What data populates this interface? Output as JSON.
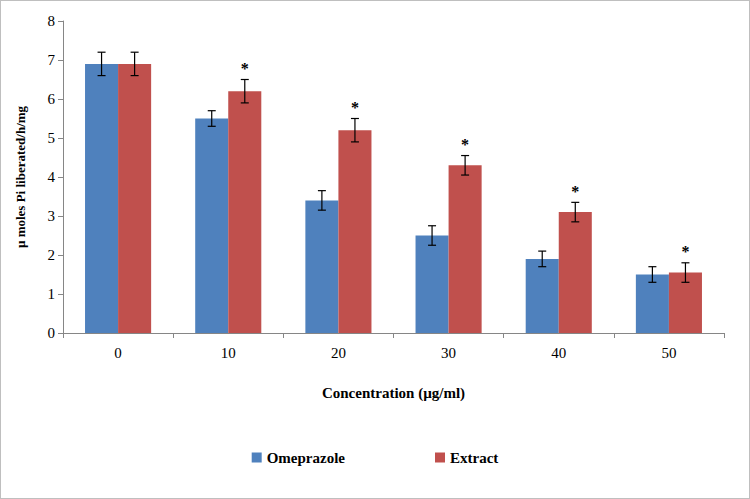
{
  "chart_data": {
    "type": "bar",
    "x_label": "Concentration (µg/ml)",
    "y_label": "µ moles Pi liberated/h/mg",
    "categories": [
      "0",
      "10",
      "20",
      "30",
      "40",
      "50"
    ],
    "series": [
      {
        "name": "Omeprazole",
        "color": "#4f81bd",
        "values": [
          6.9,
          5.5,
          3.4,
          2.5,
          1.9,
          1.5
        ],
        "errors": [
          0.3,
          0.2,
          0.25,
          0.25,
          0.2,
          0.2
        ],
        "annotations": [
          null,
          null,
          null,
          null,
          null,
          null
        ]
      },
      {
        "name": "Extract",
        "color": "#c0504d",
        "values": [
          6.9,
          6.2,
          5.2,
          4.3,
          3.1,
          1.55
        ],
        "errors": [
          0.3,
          0.3,
          0.3,
          0.25,
          0.25,
          0.25
        ],
        "annotations": [
          null,
          "*",
          "*",
          "*",
          "*",
          "*"
        ]
      }
    ],
    "ylim": [
      0,
      8
    ],
    "yticks": [
      0,
      1,
      2,
      3,
      4,
      5,
      6,
      7,
      8
    ],
    "grid": false,
    "legend": "bottom"
  }
}
